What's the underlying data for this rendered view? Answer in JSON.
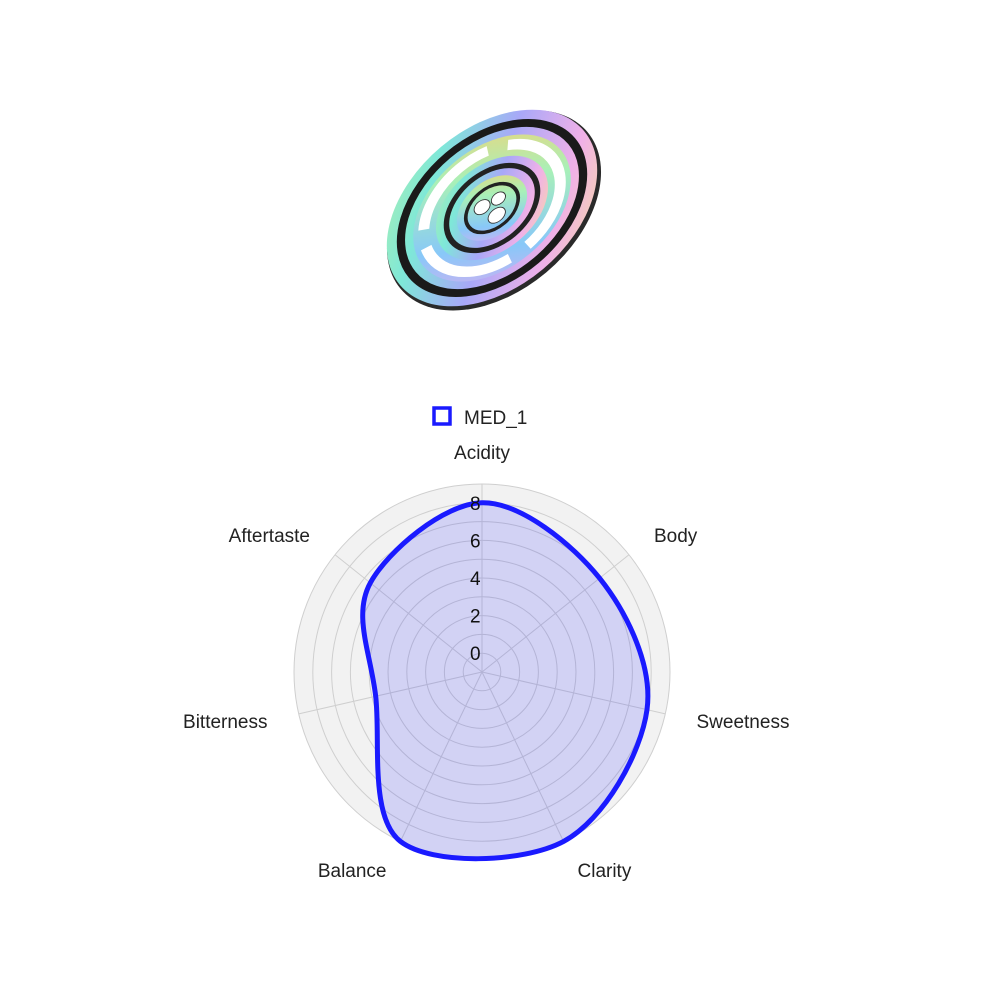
{
  "render": {
    "object": "rendered-3d-part-preview"
  },
  "colors": {
    "series_stroke": "#1a1aff",
    "series_fill": "#1a1aff",
    "background_disc": "#f2f2f2",
    "grid": "#cfcfcf"
  },
  "chart_data": {
    "type": "radar",
    "axes": [
      "Acidity",
      "Body",
      "Sweetness",
      "Clarity",
      "Balance",
      "Bitterness",
      "Aftertaste"
    ],
    "rlim": [
      -1,
      9
    ],
    "tick_labels": [
      "0",
      "2",
      "4",
      "6",
      "8"
    ],
    "tick_values": [
      0,
      2,
      4,
      6,
      8
    ],
    "grid": true,
    "legend_position": "top-center",
    "line_shape": "smooth",
    "series": [
      {
        "name": "MED_1",
        "values": [
          8.0,
          7.0,
          8.0,
          9.0,
          9.0,
          4.8,
          6.6
        ]
      }
    ]
  }
}
